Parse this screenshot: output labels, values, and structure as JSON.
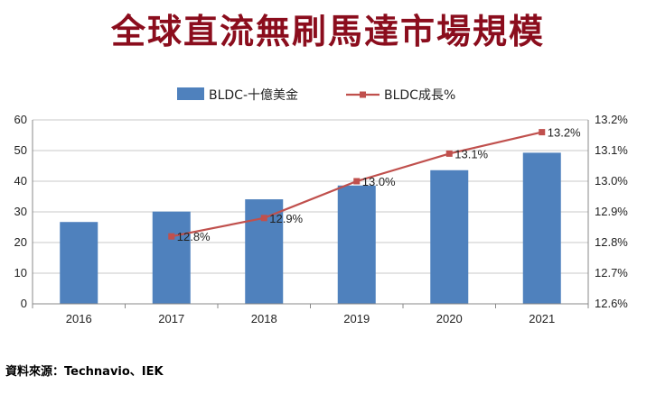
{
  "title": "全球直流無刷馬達市場規模",
  "source": "資料來源：Technavio、IEK",
  "chart_data": {
    "type": "bar+line",
    "categories": [
      "2016",
      "2017",
      "2018",
      "2019",
      "2020",
      "2021"
    ],
    "series": [
      {
        "name": "BLDC-十億美金",
        "type": "bar",
        "axis": "left",
        "values": [
          26.7,
          30.1,
          34.1,
          38.6,
          43.6,
          49.3
        ],
        "color": "#4f81bd"
      },
      {
        "name": "BLDC成長%",
        "type": "line",
        "axis": "right",
        "values": [
          null,
          12.82,
          12.88,
          13.0,
          13.09,
          13.16
        ],
        "labels": [
          "",
          "12.8%",
          "12.9%",
          "13.0%",
          "13.1%",
          "13.2%"
        ],
        "color": "#c0504d"
      }
    ],
    "y_left": {
      "min": 0,
      "max": 60,
      "ticks": [
        "0",
        "10",
        "20",
        "30",
        "40",
        "50",
        "60"
      ]
    },
    "y_right": {
      "min": 12.6,
      "max": 13.2,
      "ticks": [
        "12.6%",
        "12.7%",
        "12.8%",
        "12.9%",
        "13.0%",
        "13.1%",
        "13.2%"
      ]
    },
    "legend_position": "top",
    "grid": true
  }
}
